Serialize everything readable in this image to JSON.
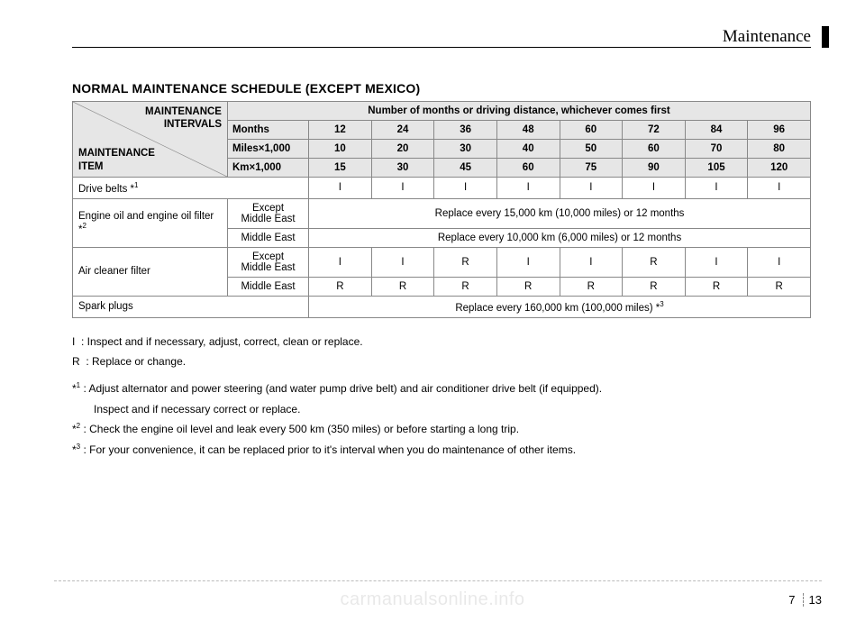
{
  "header": {
    "section_title": "Maintenance",
    "page_chapter": "7",
    "page_number": "13",
    "watermark": "carmanualsonline.info"
  },
  "heading": "NORMAL MAINTENANCE SCHEDULE (EXCEPT MEXICO)",
  "table": {
    "diag_top": "MAINTENANCE\nINTERVALS",
    "diag_bottom": "MAINTENANCE\nITEM",
    "header_span": "Number of months or driving distance, whichever comes first",
    "unit_rows": [
      {
        "label": "Months",
        "values": [
          "12",
          "24",
          "36",
          "48",
          "60",
          "72",
          "84",
          "96"
        ]
      },
      {
        "label": "Miles×1,000",
        "values": [
          "10",
          "20",
          "30",
          "40",
          "50",
          "60",
          "70",
          "80"
        ]
      },
      {
        "label": "Km×1,000",
        "values": [
          "15",
          "30",
          "45",
          "60",
          "75",
          "90",
          "105",
          "120"
        ]
      }
    ],
    "rows": [
      {
        "type": "simple",
        "label": "Drive belts *",
        "sup": "1",
        "cells": [
          "I",
          "I",
          "I",
          "I",
          "I",
          "I",
          "I",
          "I"
        ]
      },
      {
        "type": "grouped",
        "label": "Engine oil and engine oil filter *",
        "sup": "2",
        "subrows": [
          {
            "sublabel": "Except\nMiddle East",
            "note": "Replace every 15,000 km (10,000 miles) or 12 months"
          },
          {
            "sublabel": "Middle East",
            "note": "Replace every 10,000 km (6,000 miles) or 12 months"
          }
        ]
      },
      {
        "type": "grouped",
        "label": "Air cleaner filter",
        "sup": "",
        "subrows": [
          {
            "sublabel": "Except\nMiddle East",
            "cells": [
              "I",
              "I",
              "R",
              "I",
              "I",
              "R",
              "I",
              "I"
            ]
          },
          {
            "sublabel": "Middle East",
            "cells": [
              "R",
              "R",
              "R",
              "R",
              "R",
              "R",
              "R",
              "R"
            ]
          }
        ]
      },
      {
        "type": "note",
        "label": "Spark plugs",
        "note": "Replace every 160,000 km (100,000 miles) *",
        "note_sup": "3"
      }
    ]
  },
  "legend": {
    "lines": [
      {
        "prefix": "I",
        "text": ": Inspect and if necessary, adjust, correct, clean or replace."
      },
      {
        "prefix": "R",
        "text": ": Replace or change."
      }
    ],
    "footnotes": [
      {
        "sup": "1",
        "text": ": Adjust alternator and power steering (and water pump drive belt) and air conditioner drive belt (if equipped).",
        "cont": "Inspect and if necessary correct or replace."
      },
      {
        "sup": "2",
        "text": ": Check the engine oil level and leak every 500 km (350 miles) or before starting a long trip."
      },
      {
        "sup": "3",
        "text": ": For your convenience, it can be replaced prior to it's interval when you do maintenance of other items."
      }
    ]
  },
  "columns": {
    "item_width": "21%",
    "sub_width": "11%",
    "unit_label_width": "11%",
    "val_width": "8.5%"
  }
}
